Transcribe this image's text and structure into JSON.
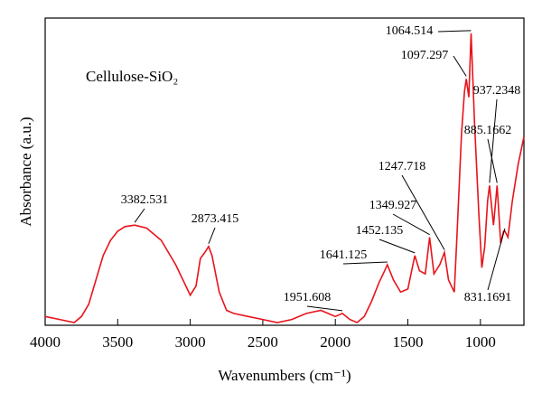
{
  "chart_data": {
    "type": "line",
    "inset_label": "Cellulose-SiO₂",
    "x_label": "Wavenumbers (cm⁻¹)",
    "y_label": "Absorbance (a.u.)",
    "xlim": [
      4000,
      700
    ],
    "xticks": [
      4000,
      3500,
      3000,
      2500,
      2000,
      1500,
      1000
    ],
    "ylim": [
      0,
      1
    ],
    "series": [
      {
        "color": "#e8131b",
        "x": [
          4000,
          3900,
          3800,
          3750,
          3700,
          3650,
          3600,
          3550,
          3500,
          3450,
          3382.531,
          3300,
          3200,
          3100,
          3000,
          2960,
          2930,
          2900,
          2873.415,
          2850,
          2800,
          2750,
          2700,
          2600,
          2500,
          2400,
          2300,
          2200,
          2100,
          2050,
          2000,
          1951.608,
          1900,
          1850,
          1800,
          1750,
          1700,
          1660,
          1641.125,
          1600,
          1550,
          1500,
          1452.135,
          1420,
          1380,
          1349.927,
          1320,
          1280,
          1247.718,
          1220,
          1180,
          1160,
          1130,
          1110,
          1097.297,
          1080,
          1064.514,
          1040,
          1010,
          990,
          970,
          950,
          937.2348,
          910,
          885.1662,
          860,
          840,
          831.1691,
          810,
          780,
          740,
          700
        ],
        "values": [
          0.02,
          0.01,
          0.0,
          0.02,
          0.06,
          0.14,
          0.22,
          0.27,
          0.3,
          0.315,
          0.32,
          0.31,
          0.27,
          0.19,
          0.09,
          0.12,
          0.21,
          0.23,
          0.25,
          0.22,
          0.1,
          0.04,
          0.03,
          0.02,
          0.01,
          0.0,
          0.01,
          0.03,
          0.04,
          0.03,
          0.02,
          0.03,
          0.01,
          0.0,
          0.02,
          0.07,
          0.13,
          0.17,
          0.19,
          0.14,
          0.1,
          0.11,
          0.22,
          0.17,
          0.16,
          0.28,
          0.16,
          0.19,
          0.23,
          0.14,
          0.1,
          0.3,
          0.62,
          0.76,
          0.8,
          0.74,
          0.95,
          0.65,
          0.35,
          0.18,
          0.25,
          0.4,
          0.45,
          0.32,
          0.45,
          0.26,
          0.3,
          0.3,
          0.28,
          0.4,
          0.52,
          0.61
        ]
      }
    ],
    "annotations": [
      {
        "text": "3382.531",
        "x": 3382.531,
        "y": 0.32
      },
      {
        "text": "2873.415",
        "x": 2873.415,
        "y": 0.25
      },
      {
        "text": "1951.608",
        "x": 1951.608,
        "y": 0.03
      },
      {
        "text": "1641.125",
        "x": 1641.125,
        "y": 0.19
      },
      {
        "text": "1452.135",
        "x": 1452.135,
        "y": 0.22
      },
      {
        "text": "1349.927",
        "x": 1349.927,
        "y": 0.28
      },
      {
        "text": "1247.718",
        "x": 1247.718,
        "y": 0.23
      },
      {
        "text": "1064.514",
        "x": 1064.514,
        "y": 0.95
      },
      {
        "text": "1097.297",
        "x": 1097.297,
        "y": 0.8
      },
      {
        "text": "937.2348",
        "x": 937.2348,
        "y": 0.45
      },
      {
        "text": "885.1662",
        "x": 885.1662,
        "y": 0.45
      },
      {
        "text": "831.1691",
        "x": 831.1691,
        "y": 0.3
      }
    ]
  }
}
